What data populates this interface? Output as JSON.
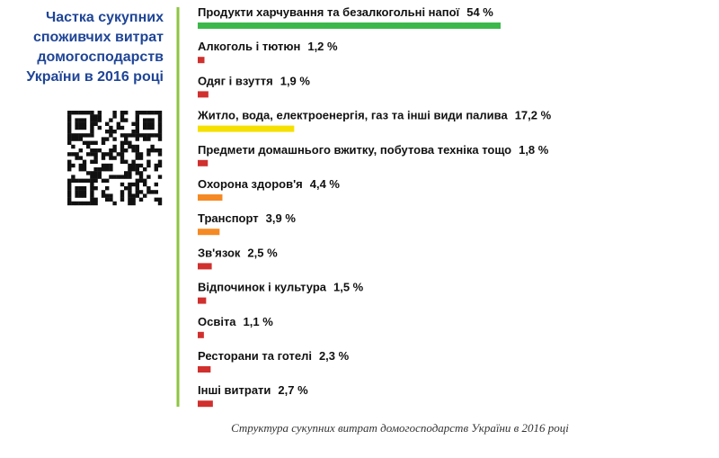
{
  "chart_data": {
    "type": "bar",
    "orientation": "horizontal",
    "title": [
      "Частка сукупних",
      "споживчих витрат",
      "домогосподарств",
      "України в 2016 році"
    ],
    "caption": "Структура сукупних витрат домогосподарств України в 2016 році",
    "categories": [
      "Продукти харчування та безалкогольні напої",
      "Алкоголь і тютюн",
      "Одяг і взуття",
      "Житло, вода, електроенергія, газ та інші види палива",
      "Предмети домашнього вжитку, побутова техніка тощо",
      "Охорона здоров'я",
      "Транспорт",
      "Зв'язок",
      "Відпочинок і культура",
      "Освіта",
      "Ресторани та готелі",
      "Інші витрати"
    ],
    "values": [
      54,
      1.2,
      1.9,
      17.2,
      1.8,
      4.4,
      3.9,
      2.5,
      1.5,
      1.1,
      2.3,
      2.7
    ],
    "value_labels": [
      "54 %",
      "1,2 %",
      "1,9 %",
      "17,2 %",
      "1,8 %",
      "4,4 %",
      "3,9 %",
      "2,5 %",
      "1,5 %",
      "1,1 %",
      "2,3 %",
      "2,7 %"
    ],
    "colors": [
      "#3cb84a",
      "#d0302e",
      "#d0302e",
      "#f5e000",
      "#d0302e",
      "#f58a24",
      "#f58a24",
      "#d0302e",
      "#d0302e",
      "#d0302e",
      "#d0302e",
      "#d0302e"
    ]
  }
}
